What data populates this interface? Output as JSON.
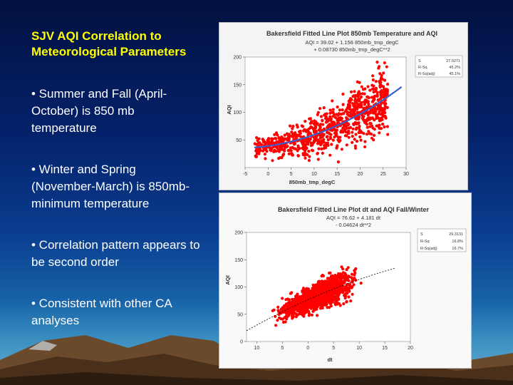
{
  "slide": {
    "title": "SJV AQI Correlation to Meteorological Parameters",
    "bullets": [
      "• Summer and Fall (April-October) is 850 mb temperature",
      "• Winter and Spring (November-March) is 850mb-minimum temperature",
      "• Correlation pattern appears to be second order",
      "• Consistent with other CA analyses"
    ]
  },
  "colors": {
    "title": "#ffff00",
    "points": "#ff0000",
    "fit_line_1": "#3a5fcd",
    "fit_line_2": "#000000"
  },
  "chart_data": [
    {
      "type": "scatter",
      "title": "Bakersfield Fitted Line Plot 850mb Temperature and AQI",
      "equation": [
        "AQI = 39.02 + 1.156 850mb_tmp_degC",
        "+ 0.08730 850mb_tmp_degC**2"
      ],
      "stats": [
        [
          "S",
          "27.0271"
        ],
        [
          "R-Sq",
          "45.2%"
        ],
        [
          "R-Sq(adj)",
          "45.1%"
        ]
      ],
      "xlabel": "850mb_tmp_degC",
      "ylabel": "AQI",
      "xlim": [
        -5,
        30
      ],
      "ylim": [
        0,
        200
      ],
      "xticks": [
        -5,
        0,
        5,
        10,
        15,
        20,
        25,
        30
      ],
      "yticks": [
        50,
        100,
        150,
        200
      ],
      "fit": {
        "a": 39.02,
        "b": 1.156,
        "c": 0.0873,
        "x_range": [
          -3,
          29
        ],
        "color": "#3a5fcd",
        "style": "solid"
      },
      "n_points": 900,
      "point_color": "#ff0000"
    },
    {
      "type": "scatter",
      "title": "Bakersfield Fitted Line Plot dt and AQI Fall/Winter",
      "equation": [
        "AQI = 76.62 + 4.181 dt",
        "- 0.04624 dt**2"
      ],
      "stats": [
        [
          "S",
          "29.3131"
        ],
        [
          "R-Sq",
          "16.8%"
        ],
        [
          "R-Sq(adj)",
          "16.7%"
        ]
      ],
      "xlabel": "dt",
      "ylabel": "AQI",
      "xlim": [
        -12,
        20
      ],
      "ylim": [
        0,
        200
      ],
      "xticks": [
        -10,
        -5,
        0,
        5,
        10,
        15,
        20
      ],
      "xtick_labels": [
        "10",
        "5",
        "0",
        "5",
        "10",
        "15",
        "20"
      ],
      "yticks": [
        0,
        50,
        100,
        150,
        200
      ],
      "fit": {
        "a": 76.62,
        "b": 4.181,
        "c": -0.04624,
        "x_range": [
          -12,
          17
        ],
        "color": "#000000",
        "style": "dashed"
      },
      "n_points": 1500,
      "point_color": "#ff0000"
    }
  ]
}
